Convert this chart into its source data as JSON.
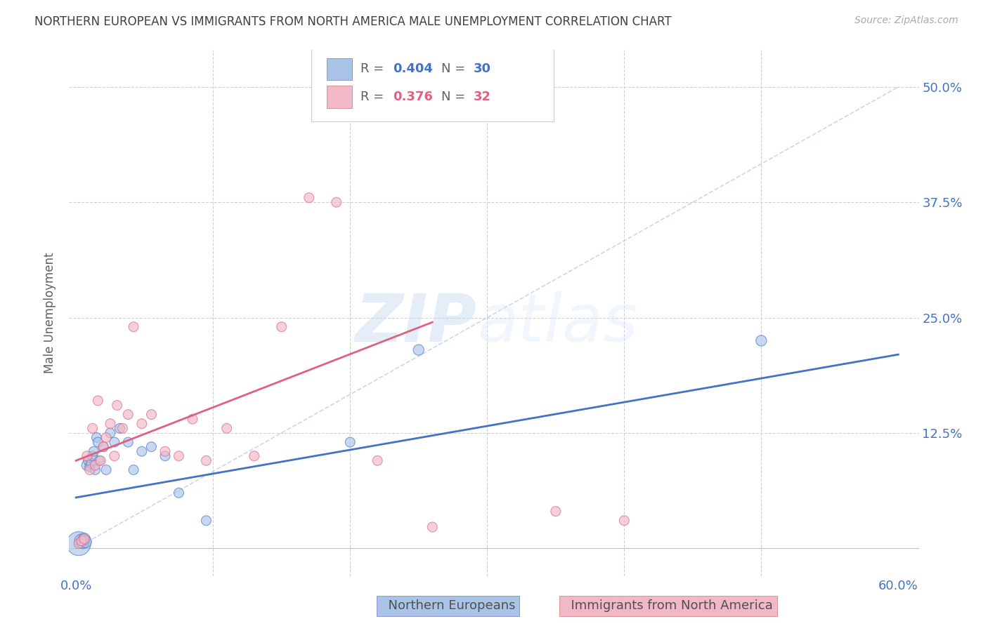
{
  "title": "NORTHERN EUROPEAN VS IMMIGRANTS FROM NORTH AMERICA MALE UNEMPLOYMENT CORRELATION CHART",
  "source": "Source: ZipAtlas.com",
  "ylabel": "Male Unemployment",
  "blue_color": "#aac4e8",
  "pink_color": "#f2b8c6",
  "blue_line_color": "#4472c4",
  "pink_line_color": "#e06080",
  "axis_label_color": "#4472c4",
  "title_color": "#404040",
  "legend_blue_r": "0.404",
  "legend_blue_n": "30",
  "legend_pink_r": "0.376",
  "legend_pink_n": "32",
  "blue_points_x": [
    0.002,
    0.004,
    0.005,
    0.006,
    0.007,
    0.008,
    0.009,
    0.01,
    0.011,
    0.012,
    0.013,
    0.014,
    0.015,
    0.016,
    0.017,
    0.02,
    0.022,
    0.025,
    0.028,
    0.032,
    0.038,
    0.042,
    0.048,
    0.055,
    0.065,
    0.075,
    0.095,
    0.2,
    0.25,
    0.5
  ],
  "blue_points_y": [
    0.005,
    0.008,
    0.006,
    0.01,
    0.007,
    0.09,
    0.095,
    0.088,
    0.092,
    0.1,
    0.105,
    0.085,
    0.12,
    0.115,
    0.095,
    0.11,
    0.085,
    0.125,
    0.115,
    0.13,
    0.115,
    0.085,
    0.105,
    0.11,
    0.1,
    0.06,
    0.03,
    0.115,
    0.215,
    0.225
  ],
  "blue_sizes": [
    600,
    200,
    150,
    150,
    150,
    120,
    100,
    100,
    100,
    100,
    100,
    100,
    100,
    100,
    100,
    100,
    100,
    100,
    100,
    100,
    100,
    100,
    100,
    100,
    100,
    100,
    100,
    100,
    120,
    120
  ],
  "pink_points_x": [
    0.002,
    0.004,
    0.006,
    0.008,
    0.01,
    0.012,
    0.014,
    0.016,
    0.018,
    0.02,
    0.022,
    0.025,
    0.028,
    0.03,
    0.034,
    0.038,
    0.042,
    0.048,
    0.055,
    0.065,
    0.075,
    0.085,
    0.095,
    0.11,
    0.13,
    0.15,
    0.17,
    0.19,
    0.22,
    0.26,
    0.35,
    0.4
  ],
  "pink_points_y": [
    0.005,
    0.008,
    0.01,
    0.1,
    0.085,
    0.13,
    0.09,
    0.16,
    0.095,
    0.11,
    0.12,
    0.135,
    0.1,
    0.155,
    0.13,
    0.145,
    0.24,
    0.135,
    0.145,
    0.105,
    0.1,
    0.14,
    0.095,
    0.13,
    0.1,
    0.24,
    0.38,
    0.375,
    0.095,
    0.023,
    0.04,
    0.03
  ],
  "pink_sizes": [
    100,
    100,
    100,
    100,
    100,
    100,
    100,
    100,
    100,
    100,
    100,
    100,
    100,
    100,
    100,
    100,
    100,
    100,
    100,
    100,
    100,
    100,
    100,
    100,
    100,
    100,
    100,
    100,
    100,
    100,
    100,
    100
  ],
  "blue_line": [
    [
      0.0,
      0.6
    ],
    [
      0.055,
      0.21
    ]
  ],
  "pink_line": [
    [
      0.0,
      0.26
    ],
    [
      0.095,
      0.245
    ]
  ],
  "dash_line": [
    [
      0.0,
      0.6
    ],
    [
      0.0,
      0.5
    ]
  ],
  "xlim": [
    -0.005,
    0.615
  ],
  "ylim": [
    -0.03,
    0.54
  ]
}
